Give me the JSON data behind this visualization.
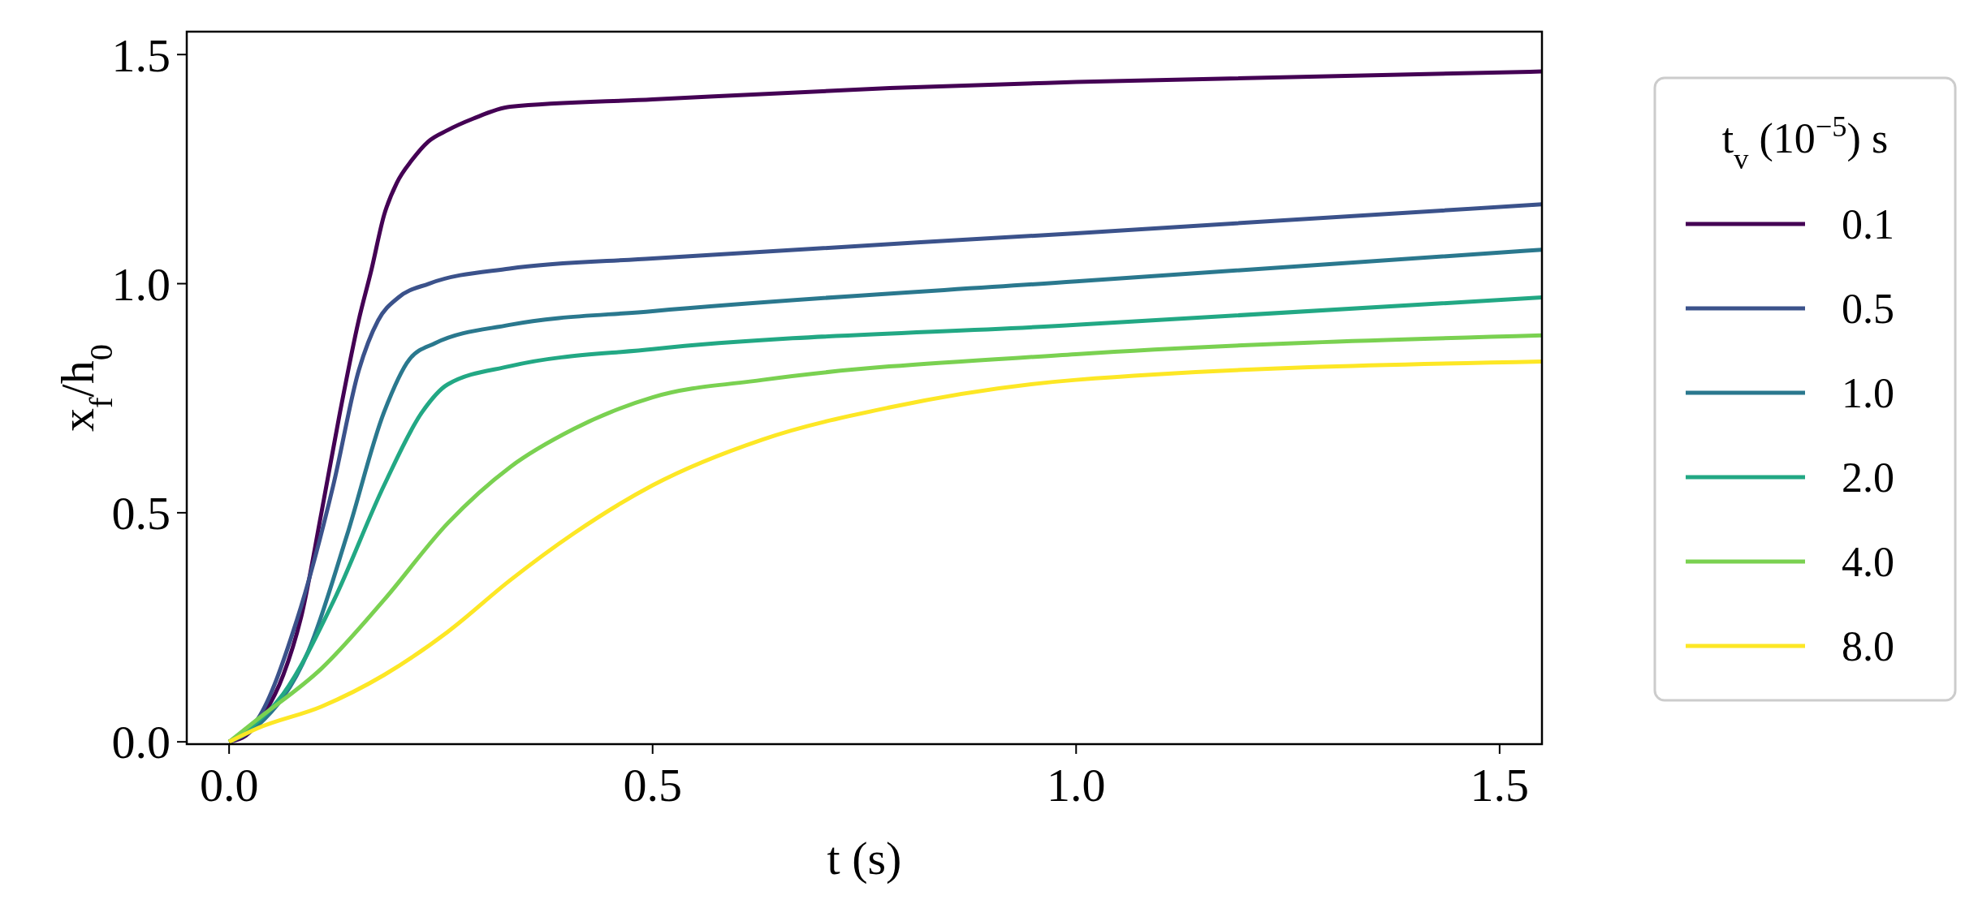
{
  "chart_data": {
    "type": "line",
    "xlabel": "t (s)",
    "ylabel": "x$_{f}$/h$_{0}$",
    "legend_title": "t$_{v}$ (10$^{−5}$) s",
    "legend": "right",
    "grid": false,
    "line_style": "solid",
    "marker": "none",
    "xlim": [
      -0.05,
      1.55
    ],
    "ylim": [
      -0.005,
      1.55
    ],
    "xticks": [
      {
        "value": 0,
        "label": "0.0"
      },
      {
        "value": 0.5,
        "label": "0.5"
      },
      {
        "value": 1,
        "label": "1.0"
      },
      {
        "value": 1.5,
        "label": "1.5"
      }
    ],
    "yticks": [
      {
        "value": 0,
        "label": "0.0"
      },
      {
        "value": 0.5,
        "label": "0.5"
      },
      {
        "value": 1,
        "label": "1.0"
      },
      {
        "value": 1.5,
        "label": "1.5"
      }
    ],
    "series": [
      {
        "name": "0.1",
        "color": "#440154",
        "x": [
          0,
          0.02,
          0.042,
          0.064,
          0.086,
          0.109,
          0.131,
          0.153,
          0.168,
          0.183,
          0.198,
          0.216,
          0.235,
          0.258,
          0.288,
          0.332,
          0.5,
          0.78,
          1.0,
          1.55
        ],
        "values": [
          0,
          0.014,
          0.063,
          0.146,
          0.28,
          0.5,
          0.72,
          0.92,
          1.03,
          1.15,
          1.22,
          1.27,
          1.31,
          1.335,
          1.36,
          1.386,
          1.402,
          1.427,
          1.44,
          1.463
        ]
      },
      {
        "name": "0.5",
        "color": "#3b528b",
        "x": [
          0,
          0.034,
          0.079,
          0.123,
          0.153,
          0.176,
          0.2,
          0.236,
          0.331,
          0.5,
          1.0,
          1.55
        ],
        "values": [
          0,
          0.05,
          0.26,
          0.56,
          0.81,
          0.92,
          0.97,
          1.0,
          1.033,
          1.055,
          1.11,
          1.173
        ]
      },
      {
        "name": "1.0",
        "color": "#2a788e",
        "x": [
          0,
          0.034,
          0.094,
          0.139,
          0.183,
          0.213,
          0.243,
          0.331,
          0.5,
          1.0,
          1.55
        ],
        "values": [
          0,
          0.036,
          0.2,
          0.45,
          0.72,
          0.835,
          0.87,
          0.91,
          0.94,
          1.005,
          1.074
        ]
      },
      {
        "name": "2.0",
        "color": "#22a884",
        "x": [
          0,
          0.019,
          0.064,
          0.124,
          0.183,
          0.228,
          0.258,
          0.332,
          0.5,
          1.0,
          1.55
        ],
        "values": [
          0,
          0.022,
          0.105,
          0.31,
          0.56,
          0.72,
          0.78,
          0.82,
          0.857,
          0.91,
          0.97
        ]
      },
      {
        "name": "4.0",
        "color": "#7ad151",
        "x": [
          0,
          0.034,
          0.109,
          0.183,
          0.258,
          0.332,
          0.407,
          0.5,
          0.63,
          1.0,
          1.55
        ],
        "values": [
          0,
          0.05,
          0.16,
          0.31,
          0.477,
          0.6,
          0.683,
          0.752,
          0.79,
          0.846,
          0.887
        ]
      },
      {
        "name": "8.0",
        "color": "#fde725",
        "x": [
          0,
          0.034,
          0.109,
          0.183,
          0.258,
          0.332,
          0.407,
          0.5,
          0.63,
          0.78,
          1.0,
          1.55
        ],
        "values": [
          0,
          0.03,
          0.077,
          0.146,
          0.24,
          0.353,
          0.455,
          0.56,
          0.66,
          0.73,
          0.79,
          0.83
        ]
      }
    ]
  }
}
